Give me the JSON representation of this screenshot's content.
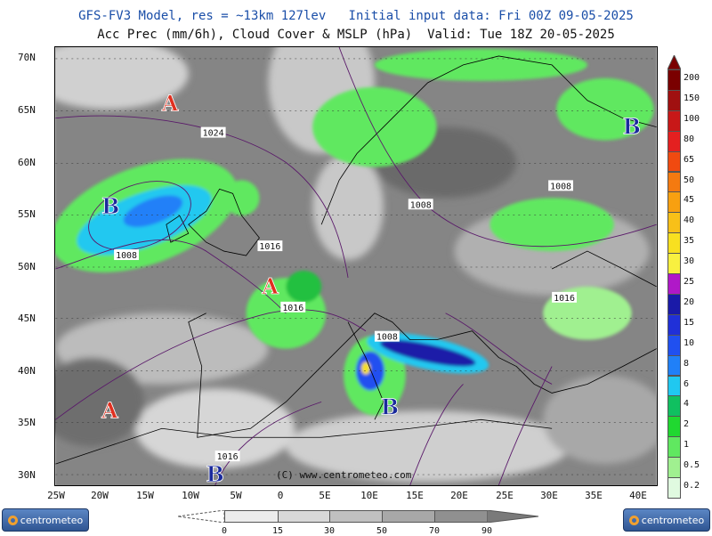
{
  "header": {
    "line1": "GFS-FV3 Model, res = ~13km 127lev   Initial input data: Fri 00Z 09-05-2025",
    "line2": "Acc Prec (mm/6h), Cloud Cover & MSLP (hPa)  Valid: Tue 18Z 20-05-2025"
  },
  "map": {
    "lat_labels": [
      "70N",
      "65N",
      "60N",
      "55N",
      "50N",
      "45N",
      "40N",
      "35N",
      "30N"
    ],
    "lon_labels": [
      "25W",
      "20W",
      "15W",
      "10W",
      "5W",
      "0",
      "5E",
      "10E",
      "15E",
      "20E",
      "25E",
      "30E",
      "35E",
      "40E"
    ],
    "pressure_centers": [
      {
        "letter": "A",
        "type": "high"
      },
      {
        "letter": "B",
        "type": "low"
      },
      {
        "letter": "B",
        "type": "low"
      },
      {
        "letter": "A",
        "type": "high"
      },
      {
        "letter": "B",
        "type": "low"
      },
      {
        "letter": "A",
        "type": "high"
      },
      {
        "letter": "B",
        "type": "low"
      }
    ],
    "isobar_labels": [
      "1024",
      "1008",
      "1008",
      "1016",
      "1016",
      "1008",
      "1008",
      "1016",
      "1016"
    ],
    "copyright": "(C) www.centrometeo.com"
  },
  "precip_colorbar": {
    "labels": [
      "200",
      "150",
      "100",
      "80",
      "65",
      "50",
      "45",
      "40",
      "35",
      "30",
      "25",
      "20",
      "15",
      "10",
      "8",
      "6",
      "4",
      "2",
      "1",
      "0.5",
      "0.2"
    ],
    "colors": [
      "#7a0000",
      "#a01010",
      "#c81818",
      "#e42020",
      "#f04a10",
      "#f47a10",
      "#f8a010",
      "#f8c018",
      "#f8e020",
      "#f8f040",
      "#b018c8",
      "#1a1aa8",
      "#2030d8",
      "#2050f0",
      "#2080f8",
      "#20c8f0",
      "#10c060",
      "#20d830",
      "#60e860",
      "#a0f090",
      "#e0fae0"
    ]
  },
  "cloud_colorbar": {
    "labels": [
      "0",
      "15",
      "30",
      "50",
      "70",
      "90"
    ],
    "colors": [
      "#ececec",
      "#d8d8d8",
      "#c0c0c0",
      "#a8a8a8",
      "#909090"
    ]
  },
  "logos": {
    "left": "centrometeo",
    "right": "centrometeo"
  }
}
